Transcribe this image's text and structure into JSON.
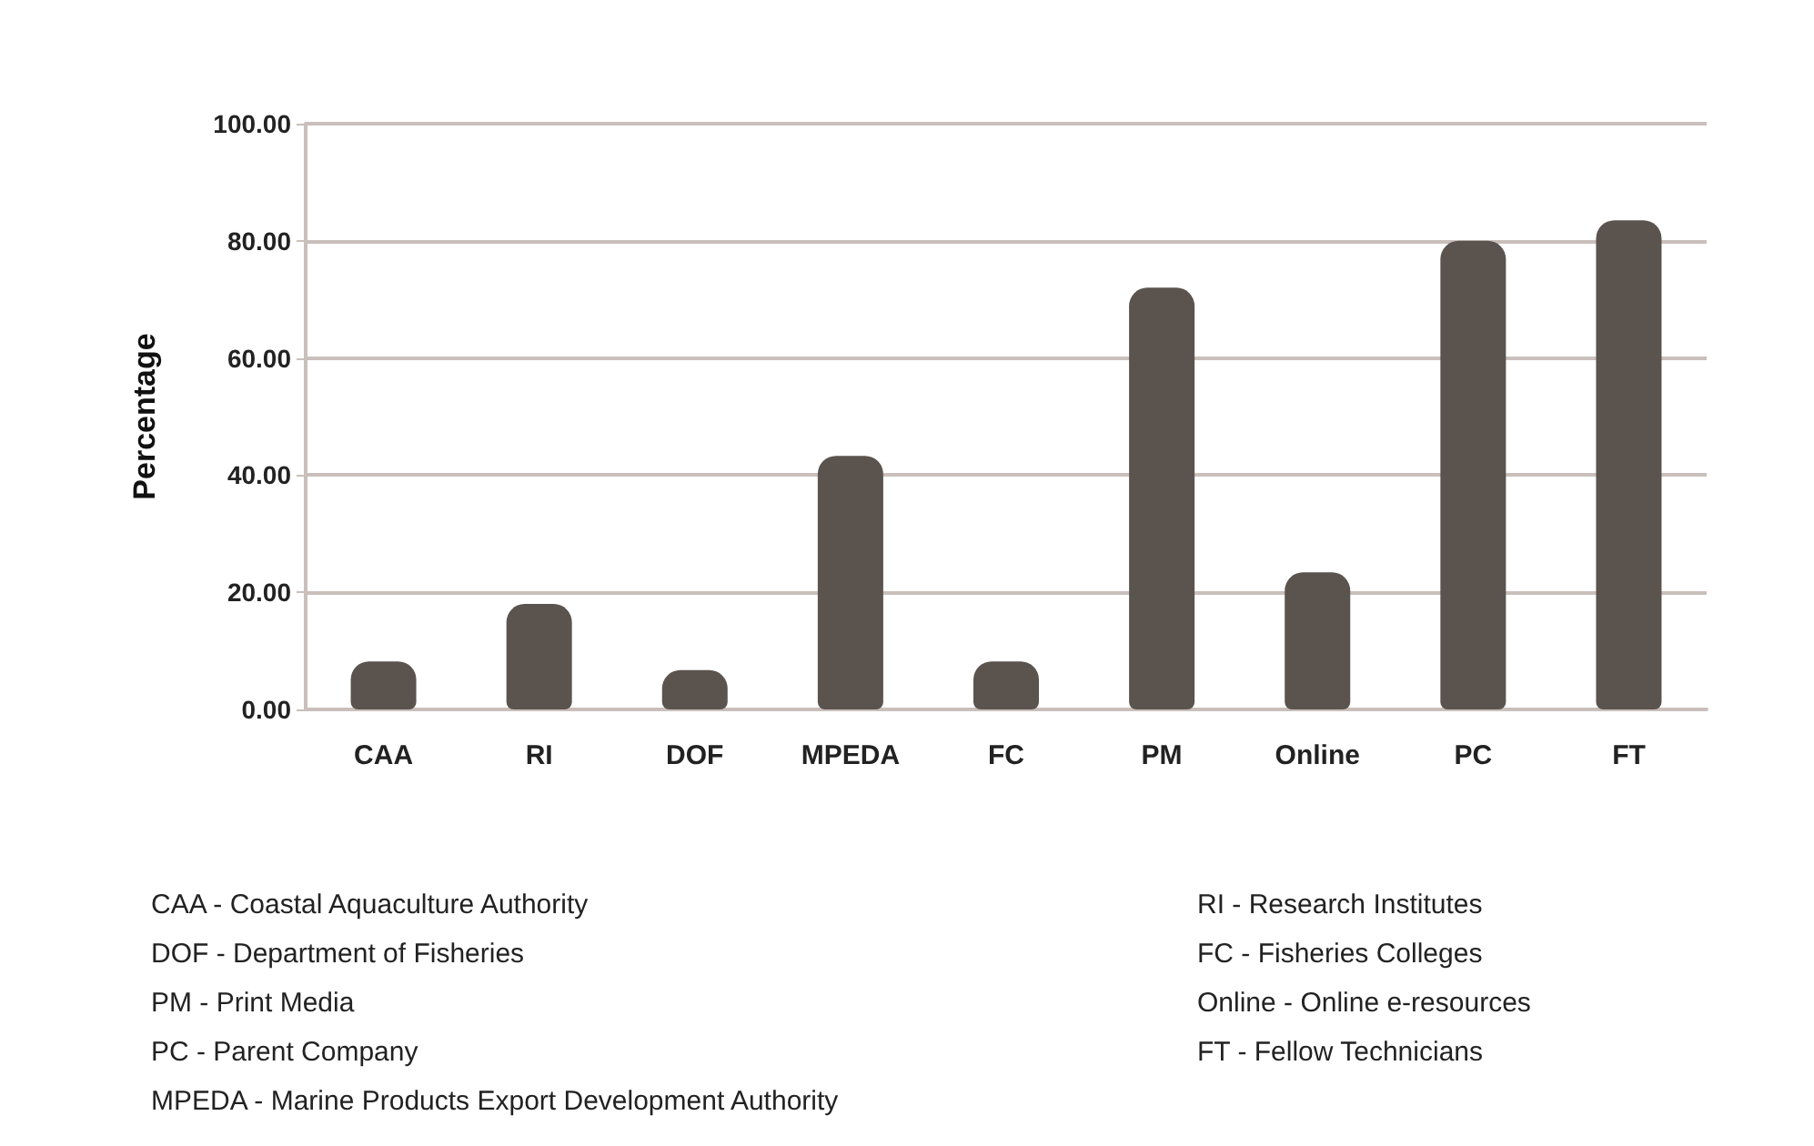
{
  "chart_data": {
    "type": "bar",
    "ylabel": "Percentage",
    "categories": [
      "CAA",
      "RI",
      "DOF",
      "MPEDA",
      "FC",
      "PM",
      "Online",
      "PC",
      "FT"
    ],
    "values": [
      8.2,
      18,
      6.7,
      43.3,
      8.2,
      72,
      23.4,
      80,
      83.5
    ],
    "color": "#5a534e",
    "ylim": [
      0,
      100
    ],
    "yticks": [
      {
        "value": 0,
        "label": "0.00"
      },
      {
        "value": 20,
        "label": "20.00"
      },
      {
        "value": 40,
        "label": "40.00"
      },
      {
        "value": 60,
        "label": "60.00"
      },
      {
        "value": 80,
        "label": "80.00"
      },
      {
        "value": 100,
        "label": "100.00"
      }
    ],
    "grid": "y",
    "annotations": [
      "CAA - Coastal Aquaculture Authority",
      "RI - Research Institutes",
      "DOF - Department of Fisheries",
      "FC - Fisheries Colleges",
      "PM - Print Media",
      "Online - Online e-resources",
      "PC - Parent Company",
      "FT - Fellow Technicians",
      "MPEDA - Marine Products Export Development Authority"
    ]
  }
}
